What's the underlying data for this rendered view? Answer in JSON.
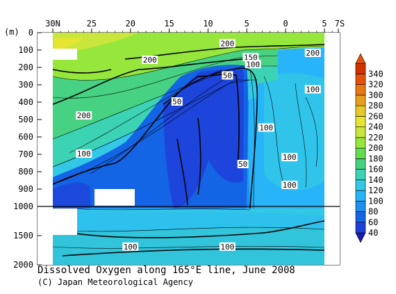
{
  "chart_data": {
    "type": "heatmap",
    "title": "Dissolved Oxygen along 165°E line, June 2008",
    "credit": "(C) Japan Meteorological Agency",
    "xlabel": "",
    "ylabel": "(m)",
    "x_ticks": [
      {
        "value": 30,
        "label": "30N"
      },
      {
        "value": 25,
        "label": "25"
      },
      {
        "value": 20,
        "label": "20"
      },
      {
        "value": 15,
        "label": "15"
      },
      {
        "value": 10,
        "label": "10"
      },
      {
        "value": 5,
        "label": "5"
      },
      {
        "value": 0,
        "label": "0"
      },
      {
        "value": -5,
        "label": "5"
      },
      {
        "value": -7,
        "label": "7S"
      }
    ],
    "xlim": [
      30,
      -7
    ],
    "ylim": [
      0,
      2000
    ],
    "y_ticks_upper": [
      0,
      100,
      200,
      300,
      400,
      500,
      600,
      700,
      800,
      900,
      1000
    ],
    "y_ticks_lower": [
      1500,
      2000
    ],
    "y_scale": "two-segment: 0-1000 m expanded, 1000-2000 m compressed",
    "colorbar": {
      "labels": [
        40,
        60,
        80,
        100,
        120,
        140,
        160,
        180,
        200,
        220,
        240,
        260,
        280,
        300,
        320,
        340
      ],
      "colors": [
        "#1e3fd8",
        "#1464e6",
        "#1e90f0",
        "#28b4f8",
        "#32c8e6",
        "#3cd2b4",
        "#46d282",
        "#64dc50",
        "#96e63c",
        "#c8e63c",
        "#e6e632",
        "#e6c828",
        "#e6a01e",
        "#e67814",
        "#e6500a",
        "#d23200"
      ]
    },
    "contour_labels": [
      {
        "text": "200",
        "x": 7.5,
        "depth": 65
      },
      {
        "text": "200",
        "x": 17.5,
        "depth": 160
      },
      {
        "text": "200",
        "x": 26,
        "depth": 480
      },
      {
        "text": "200",
        "x": -3.5,
        "depth": 120
      },
      {
        "text": "150",
        "x": 4.5,
        "depth": 145
      },
      {
        "text": "100",
        "x": 4.2,
        "depth": 185
      },
      {
        "text": "100",
        "x": 26,
        "depth": 700
      },
      {
        "text": "100",
        "x": 2.5,
        "depth": 550
      },
      {
        "text": "100",
        "x": -0.5,
        "depth": 720
      },
      {
        "text": "100",
        "x": -0.5,
        "depth": 880
      },
      {
        "text": "100",
        "x": -3.5,
        "depth": 330
      },
      {
        "text": "100",
        "x": 20,
        "depth": 1700
      },
      {
        "text": "100",
        "x": 7.5,
        "depth": 1700
      },
      {
        "text": "50",
        "x": 7.5,
        "depth": 250
      },
      {
        "text": "50",
        "x": 14,
        "depth": 400
      },
      {
        "text": "50",
        "x": 5.5,
        "depth": 760
      }
    ]
  }
}
